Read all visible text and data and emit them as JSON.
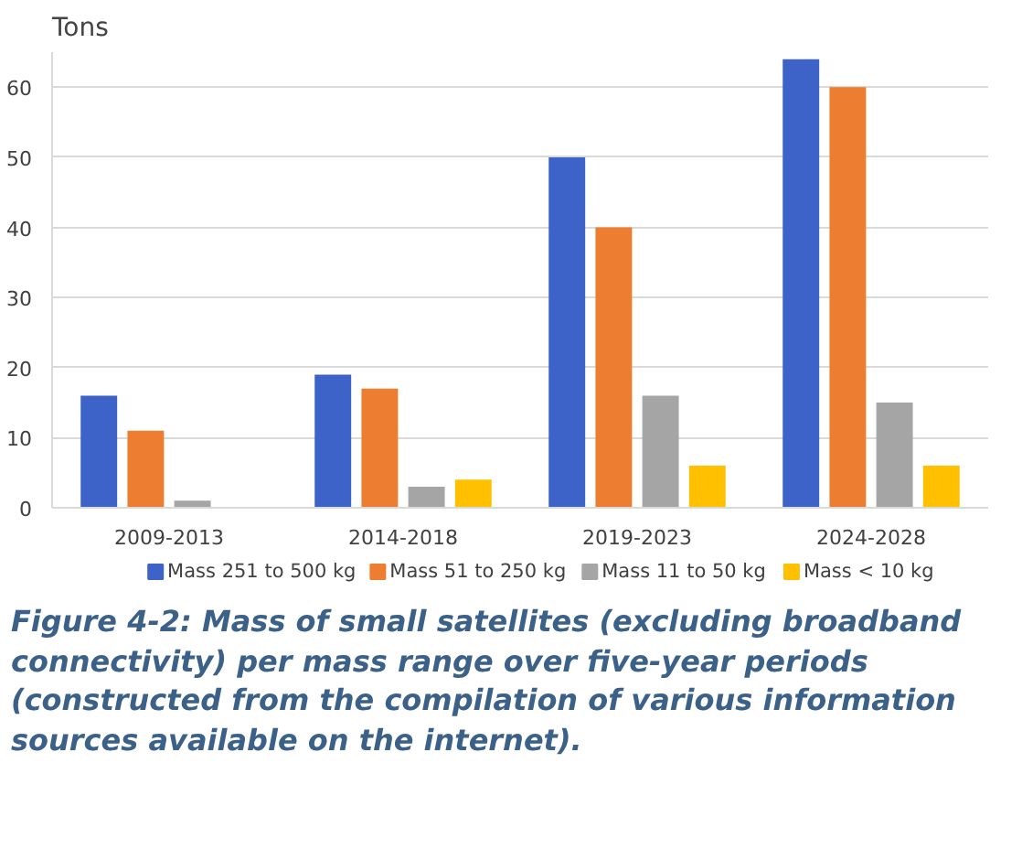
{
  "chart_data": {
    "type": "bar",
    "ylabel": "Tons",
    "categories": [
      "2009-2013",
      "2014-2018",
      "2019-2023",
      "2024-2028"
    ],
    "series": [
      {
        "name": "Mass 251 to 500 kg",
        "color": "#3d63c9",
        "values": [
          16,
          19,
          50,
          64
        ]
      },
      {
        "name": "Mass 51 to 250 kg",
        "color": "#ed7d31",
        "values": [
          11,
          17,
          40,
          60
        ]
      },
      {
        "name": "Mass 11 to 50 kg",
        "color": "#a5a5a5",
        "values": [
          1,
          3,
          16,
          15
        ]
      },
      {
        "name": "Mass < 10 kg",
        "color": "#ffc000",
        "values": [
          null,
          4,
          6,
          6
        ]
      }
    ],
    "ylim": [
      0,
      65
    ],
    "yticks": [
      0,
      10,
      20,
      30,
      40,
      50,
      60
    ],
    "grid": "y",
    "legend": "bottom",
    "annotations": [
      "Figure 4-2: Mass of small satellites (excluding broadband connectivity) per mass range over five-year periods (constructed from the compilation of various information sources available on the internet)."
    ]
  }
}
